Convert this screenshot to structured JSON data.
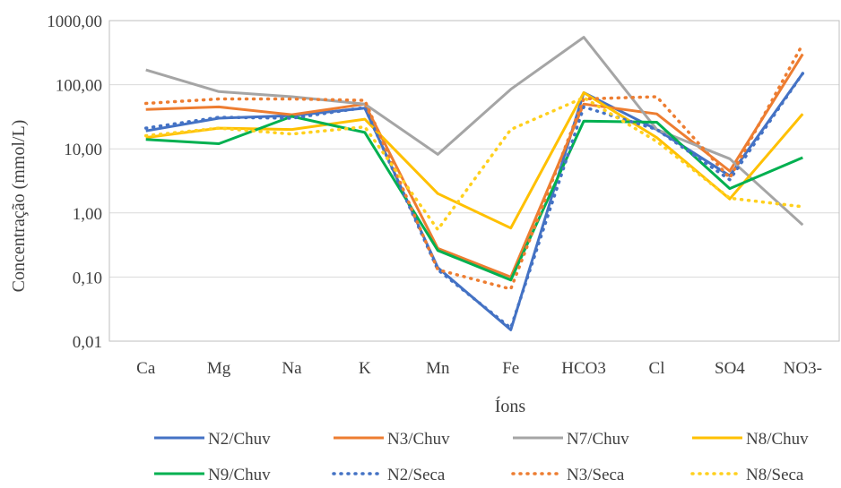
{
  "chart_data": {
    "type": "line",
    "categories": [
      "Ca",
      "Mg",
      "Na",
      "K",
      "Mn",
      "Fe",
      "HCO3",
      "Cl",
      "SO4",
      "NO3-"
    ],
    "xlabel": "Íons",
    "ylabel": "Concentração (mmol/L)",
    "yscale": "log",
    "ylim": [
      0.01,
      1000
    ],
    "yticks": [
      0.01,
      0.1,
      1,
      10,
      100,
      1000
    ],
    "ytick_labels": [
      "0,01",
      "0,10",
      "1,00",
      "10,00",
      "100,00",
      "1000,00"
    ],
    "grid": "horizontal",
    "legend": "bottom",
    "series": [
      {
        "name": "N2/Chuv",
        "color": "#4472C4",
        "dash": "solid",
        "values": [
          19,
          30,
          33,
          43,
          0.14,
          0.015,
          75,
          20,
          3.8,
          150
        ]
      },
      {
        "name": "N3/Chuv",
        "color": "#ED7D31",
        "dash": "solid",
        "values": [
          41,
          45,
          34,
          50,
          0.28,
          0.1,
          50,
          35,
          4.5,
          300
        ]
      },
      {
        "name": "N7/Chuv",
        "color": "#A5A5A5",
        "dash": "solid",
        "values": [
          170,
          78,
          65,
          50,
          8.2,
          85,
          550,
          20,
          7,
          0.65
        ]
      },
      {
        "name": "N8/Chuv",
        "color": "#FFC000",
        "dash": "solid",
        "values": [
          15,
          21,
          20,
          29,
          2,
          0.58,
          75,
          15,
          1.65,
          35
        ]
      },
      {
        "name": "N9/Chuv",
        "color": "#00B050",
        "dash": "solid",
        "values": [
          14,
          12,
          32,
          18,
          0.26,
          0.09,
          27,
          26,
          2.4,
          7.3
        ]
      },
      {
        "name": "N2/Seca",
        "color": "#4472C4",
        "dash": "dot",
        "values": [
          21,
          31,
          30,
          44,
          0.13,
          0.016,
          45,
          20,
          3.3,
          150
        ]
      },
      {
        "name": "N3/Seca",
        "color": "#ED7D31",
        "dash": "dot",
        "values": [
          51,
          60,
          60,
          57,
          0.13,
          0.065,
          60,
          65,
          3.5,
          430
        ]
      },
      {
        "name": "N8/Seca",
        "color": "#FFD01E",
        "dash": "dot",
        "values": [
          16,
          21,
          17,
          22,
          0.55,
          20,
          63,
          13,
          1.7,
          1.25
        ]
      }
    ]
  }
}
